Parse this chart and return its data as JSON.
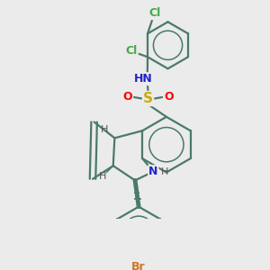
{
  "background_color": "#ebebeb",
  "bond_color": "#4a7a6a",
  "bond_width": 1.6,
  "figsize": [
    3.0,
    3.0
  ],
  "dpi": 100,
  "colors": {
    "bond": "#4a7a6a",
    "Br": "#cc7722",
    "Cl": "#44aa44",
    "N": "#2222cc",
    "O": "#ff0000",
    "S": "#ccaa00",
    "H": "#555555",
    "dark": "#333333"
  }
}
